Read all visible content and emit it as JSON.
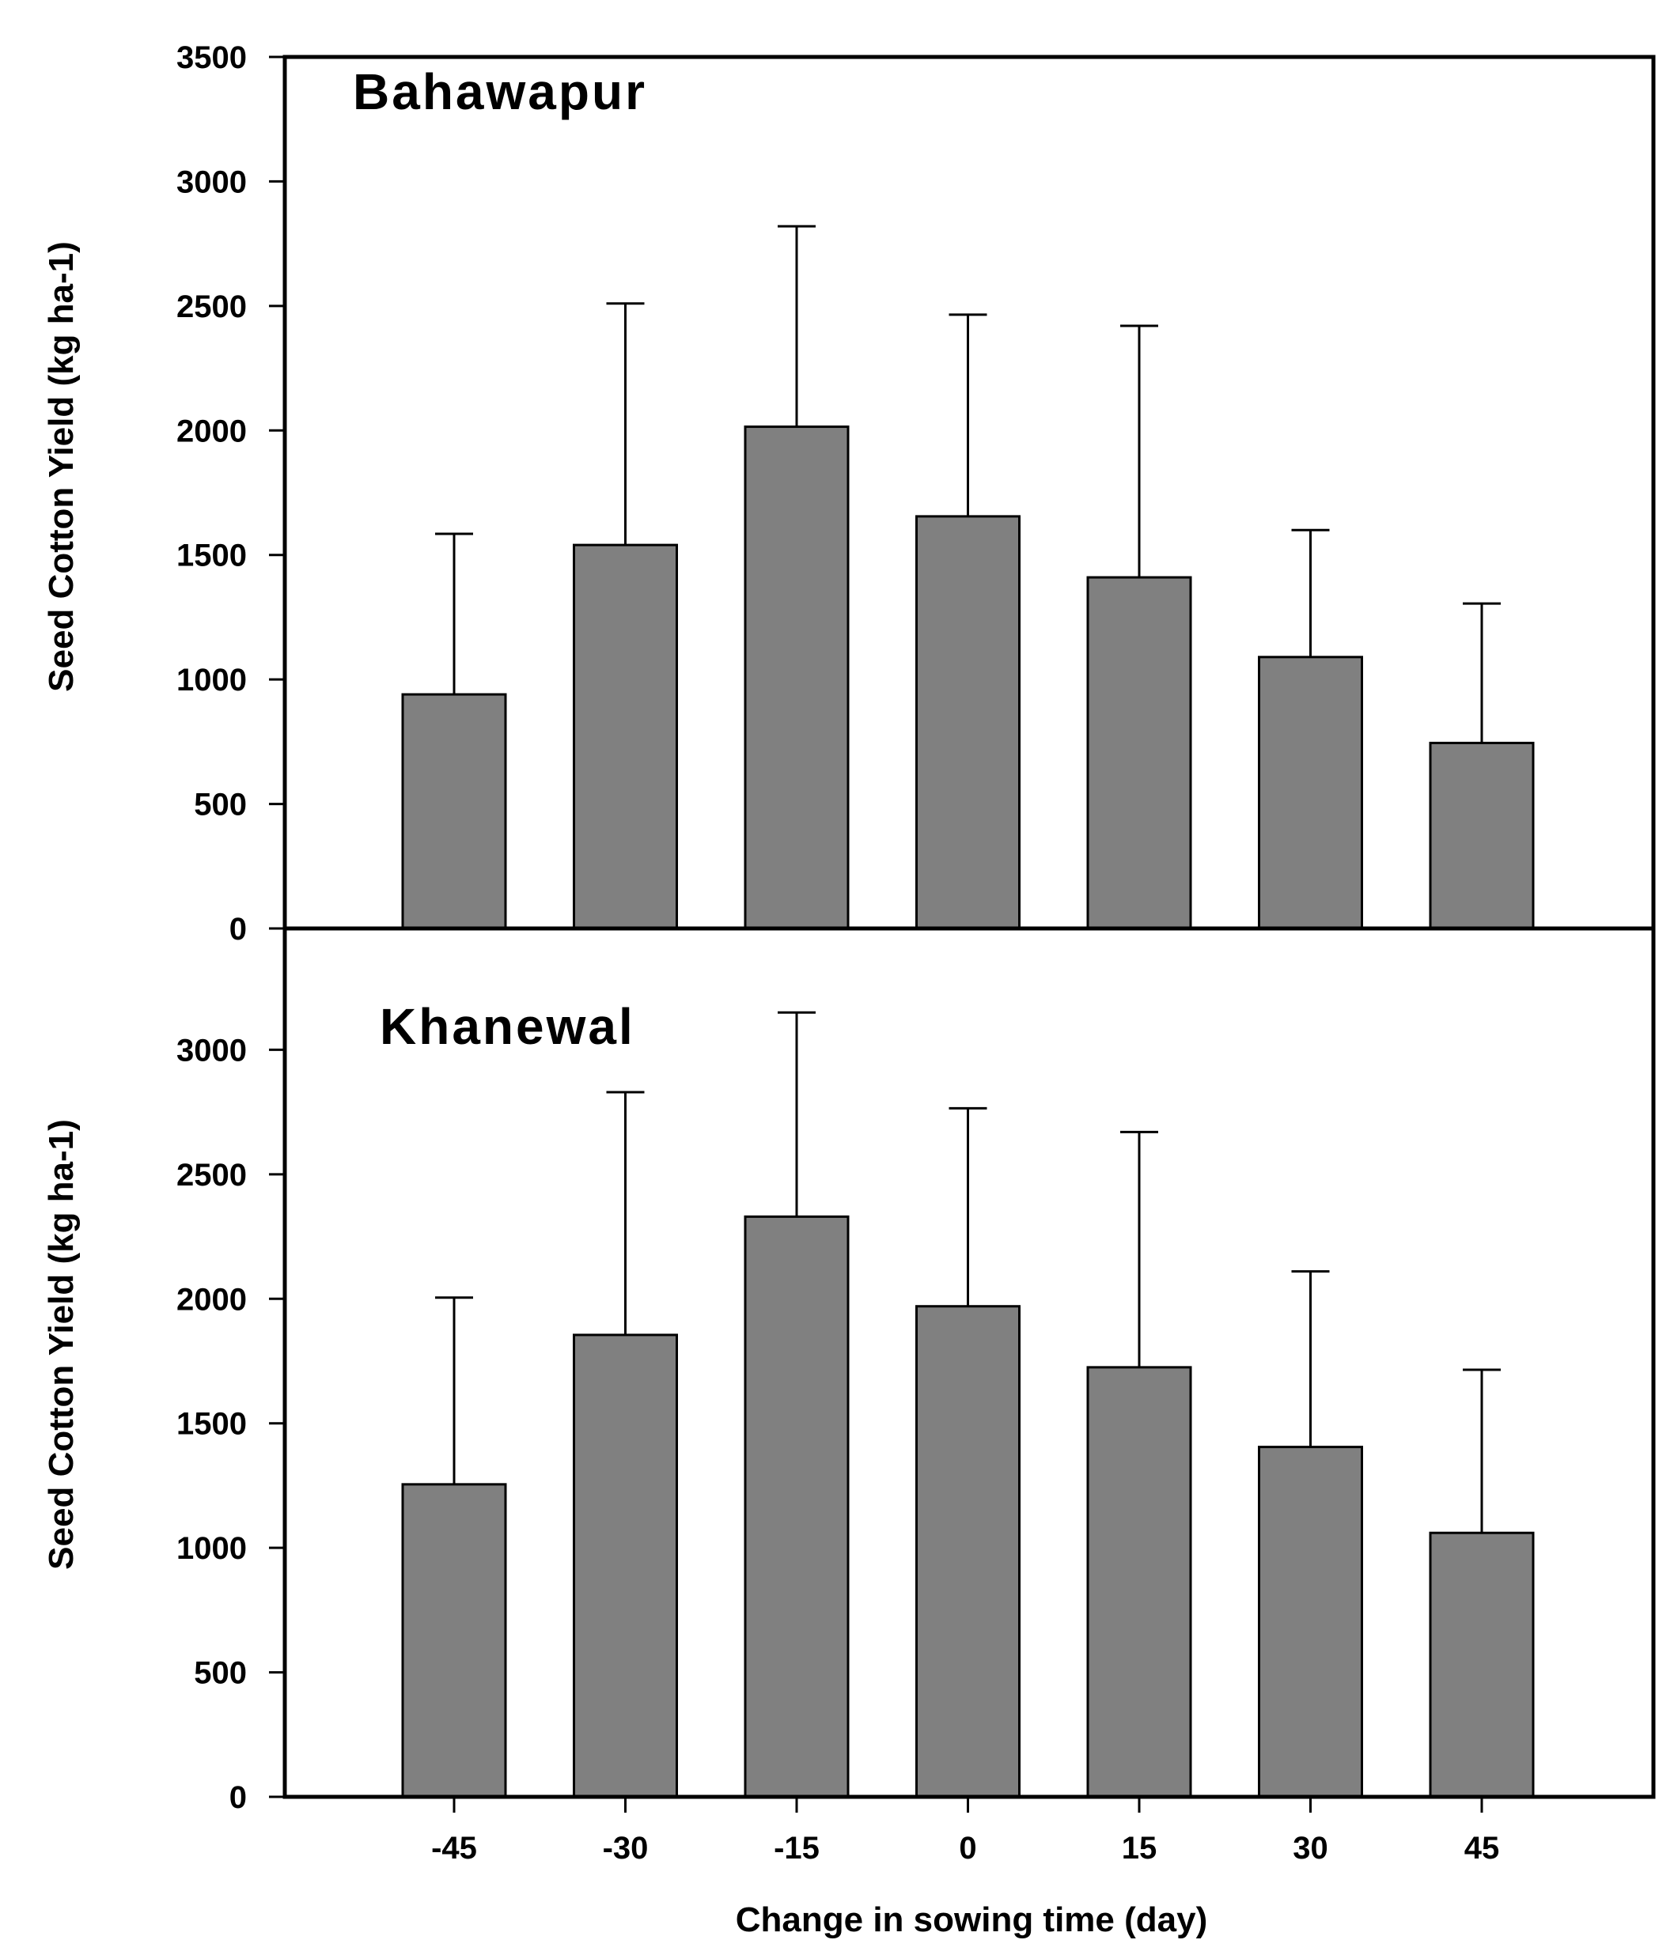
{
  "chart_data": {
    "type": "bar",
    "xlabel": "Change in sowing time (day)",
    "categories": [
      "-45",
      "-30",
      "-15",
      "0",
      "15",
      "30",
      "45"
    ],
    "colors": {
      "bar": "#808080",
      "stroke": "#000000"
    },
    "panels": [
      {
        "title": "Bahawapur",
        "ylabel": "Seed Cotton Yield (kg ha-1)",
        "ylim": [
          0,
          3500
        ],
        "yticks": [
          0,
          500,
          1000,
          1500,
          2000,
          2500,
          3000,
          3500
        ],
        "ytick_labels": [
          "0",
          "500",
          "1000",
          "1500",
          "2000",
          "2500",
          "3000",
          "3500"
        ],
        "values": [
          940,
          1540,
          2015,
          1655,
          1410,
          1090,
          745
        ],
        "error_upper": [
          1585,
          2510,
          2820,
          2465,
          2420,
          1600,
          1305
        ]
      },
      {
        "title": "Khanewal",
        "ylabel": "Seed Cotton Yield (kg ha-1)",
        "ylim": [
          0,
          3500
        ],
        "yticks": [
          0,
          500,
          1000,
          1500,
          2000,
          2500,
          3000
        ],
        "ytick_labels": [
          "0",
          "500",
          "1000",
          "1500",
          "2000",
          "2500",
          "3000"
        ],
        "values": [
          1255,
          1855,
          2330,
          1970,
          1725,
          1405,
          1060
        ],
        "error_upper": [
          2005,
          2830,
          3150,
          2765,
          2670,
          2110,
          1715
        ]
      }
    ]
  }
}
